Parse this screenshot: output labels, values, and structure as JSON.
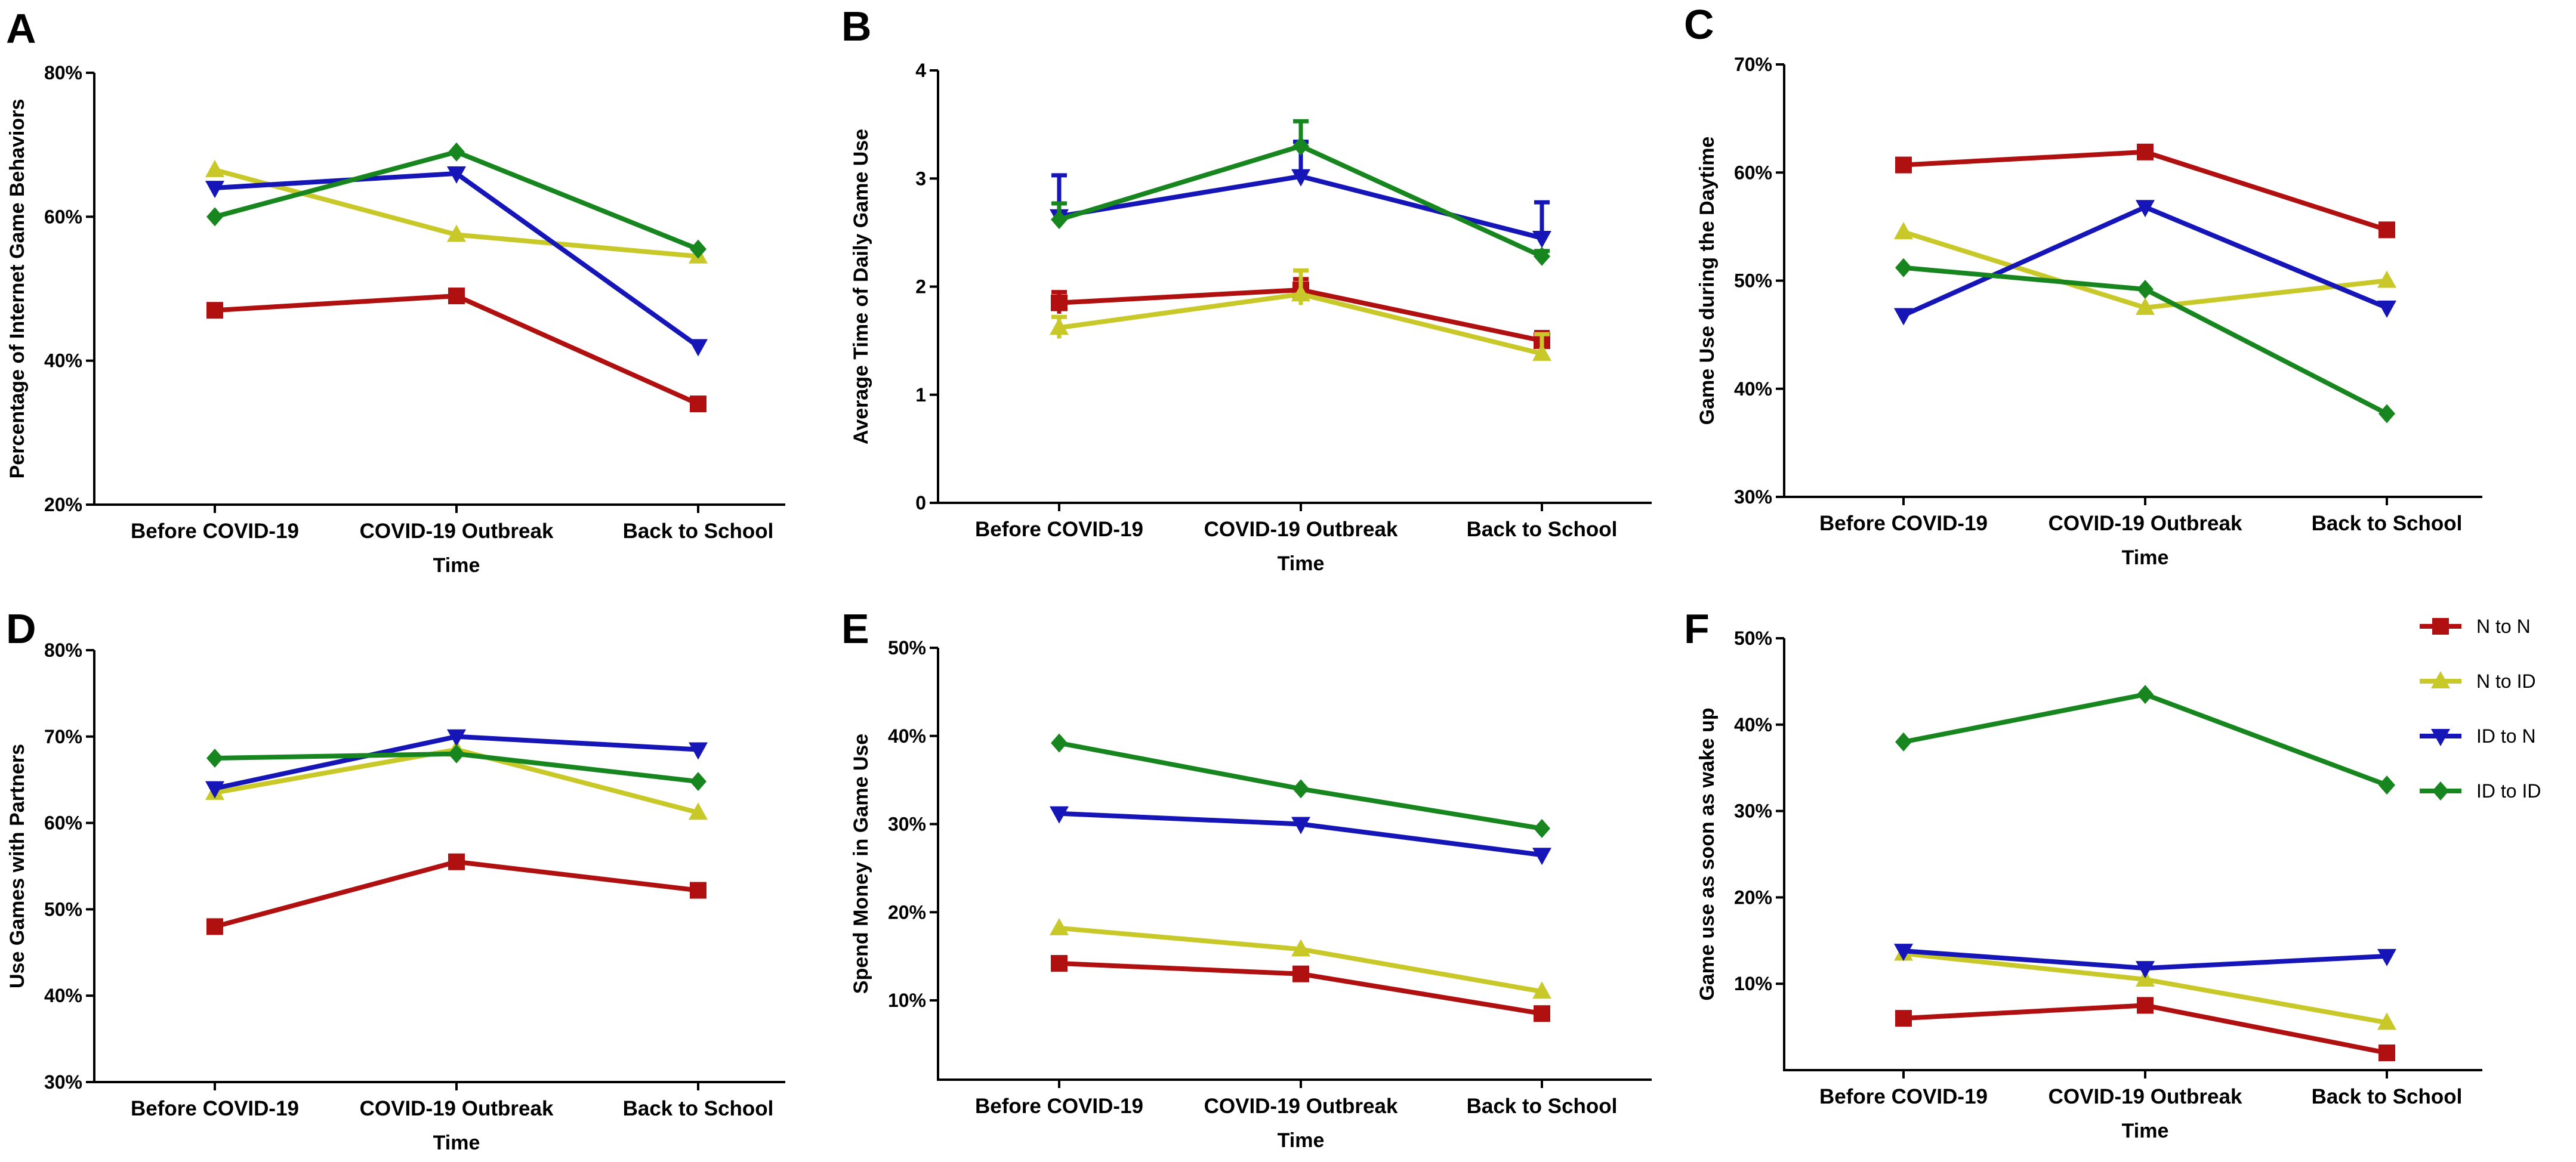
{
  "colors": {
    "N to N": "#b01010",
    "N to ID": "#c8c829",
    "ID to N": "#1515b8",
    "ID to ID": "#17861f"
  },
  "markers": {
    "N to N": "square",
    "N to ID": "triangle-up",
    "ID to N": "triangle-down",
    "ID to ID": "diamond"
  },
  "legend": {
    "items": [
      "N to N",
      "N to ID",
      "ID to N",
      "ID to ID"
    ]
  },
  "chart_data": [
    {
      "panel": "A",
      "type": "line",
      "categories": [
        "Before COVID-19",
        "COVID-19 Outbreak",
        "Back to School"
      ],
      "xlabel": "Time",
      "ylabel": "Percentage of Internet Game Behaviors",
      "ylim": [
        20,
        80
      ],
      "yticks": [
        20,
        40,
        60,
        80
      ],
      "ytick_labels": [
        "20%",
        "40%",
        "60%",
        "80%"
      ],
      "series": [
        {
          "name": "N to N",
          "values": [
            47,
            49,
            34
          ]
        },
        {
          "name": "N to ID",
          "values": [
            66.5,
            57.5,
            54.5
          ]
        },
        {
          "name": "ID to N",
          "values": [
            64,
            66,
            42
          ]
        },
        {
          "name": "ID to ID",
          "values": [
            60,
            69,
            55.5
          ]
        }
      ]
    },
    {
      "panel": "B",
      "type": "line",
      "categories": [
        "Before COVID-19",
        "COVID-19 Outbreak",
        "Back to School"
      ],
      "xlabel": "Time",
      "ylabel": "Average Time of Daily Game Use",
      "ylim": [
        0,
        4
      ],
      "yticks": [
        0,
        1,
        2,
        3,
        4
      ],
      "ytick_labels": [
        "0",
        "1",
        "2",
        "3",
        "4"
      ],
      "series": [
        {
          "name": "N to N",
          "values": [
            1.85,
            1.97,
            1.5
          ],
          "err_up": [
            0.1,
            0.1,
            0.08
          ],
          "err_down": [
            0.1,
            0.1,
            0.08
          ]
        },
        {
          "name": "N to ID",
          "values": [
            1.62,
            1.93,
            1.38
          ],
          "err_up": [
            0.1,
            0.22,
            0.18
          ],
          "err_down": [
            0.1,
            0.1,
            0.05
          ]
        },
        {
          "name": "ID to N",
          "values": [
            2.65,
            3.02,
            2.45
          ],
          "err_up": [
            0.38,
            0.32,
            0.33
          ],
          "err_down": [
            0.05,
            0.05,
            0.05
          ]
        },
        {
          "name": "ID to ID",
          "values": [
            2.62,
            3.3,
            2.28
          ],
          "err_up": [
            0.15,
            0.23,
            0.05
          ],
          "err_down": [
            0.05,
            0.05,
            0.05
          ]
        }
      ]
    },
    {
      "panel": "C",
      "type": "line",
      "categories": [
        "Before COVID-19",
        "COVID-19 Outbreak",
        "Back to School"
      ],
      "xlabel": "Time",
      "ylabel": "Game Use during the Daytime",
      "ylim": [
        30,
        70
      ],
      "yticks": [
        30,
        40,
        50,
        60,
        70
      ],
      "ytick_labels": [
        "30%",
        "40%",
        "50%",
        "60%",
        "70%"
      ],
      "series": [
        {
          "name": "N to N",
          "values": [
            60.7,
            61.9,
            54.7
          ]
        },
        {
          "name": "N to ID",
          "values": [
            54.5,
            47.5,
            50
          ]
        },
        {
          "name": "ID to N",
          "values": [
            46.8,
            56.8,
            47.5
          ]
        },
        {
          "name": "ID to ID",
          "values": [
            51.2,
            49.2,
            37.7
          ]
        }
      ]
    },
    {
      "panel": "D",
      "type": "line",
      "categories": [
        "Before COVID-19",
        "COVID-19 Outbreak",
        "Back to School"
      ],
      "xlabel": "Time",
      "ylabel": "Use Games with Partners",
      "ylim": [
        30,
        80
      ],
      "yticks": [
        30,
        40,
        50,
        60,
        70,
        80
      ],
      "ytick_labels": [
        "30%",
        "40%",
        "50%",
        "60%",
        "70%",
        "80%"
      ],
      "series": [
        {
          "name": "N to N",
          "values": [
            48,
            55.5,
            52.2
          ]
        },
        {
          "name": "N to ID",
          "values": [
            63.5,
            68.5,
            61.2
          ]
        },
        {
          "name": "ID to N",
          "values": [
            64,
            70,
            68.5
          ]
        },
        {
          "name": "ID to ID",
          "values": [
            67.5,
            68,
            64.8
          ]
        }
      ]
    },
    {
      "panel": "E",
      "type": "line",
      "categories": [
        "Before COVID-19",
        "COVID-19 Outbreak",
        "Back to School"
      ],
      "xlabel": "Time",
      "ylabel": "Spend Money in Game Use",
      "ylim": [
        1,
        50
      ],
      "yticks": [
        10,
        20,
        30,
        40,
        50
      ],
      "ytick_labels": [
        "10%",
        "20%",
        "30%",
        "40%",
        "50%"
      ],
      "series": [
        {
          "name": "N to N",
          "values": [
            14.2,
            13,
            8.5
          ]
        },
        {
          "name": "N to ID",
          "values": [
            18.2,
            15.8,
            11
          ]
        },
        {
          "name": "ID to N",
          "values": [
            31.2,
            30,
            26.5
          ]
        },
        {
          "name": "ID to ID",
          "values": [
            39.2,
            34,
            29.5
          ]
        }
      ]
    },
    {
      "panel": "F",
      "type": "line",
      "categories": [
        "Before COVID-19",
        "COVID-19 Outbreak",
        "Back to School"
      ],
      "xlabel": "Time",
      "ylabel": "Game use as soon as wake up",
      "ylim": [
        0,
        50
      ],
      "yticks": [
        10,
        20,
        30,
        40,
        50
      ],
      "ytick_labels": [
        "10%",
        "20%",
        "30%",
        "40%",
        "50%"
      ],
      "series": [
        {
          "name": "N to N",
          "values": [
            6,
            7.5,
            2
          ]
        },
        {
          "name": "N to ID",
          "values": [
            13.5,
            10.5,
            5.5
          ]
        },
        {
          "name": "ID to N",
          "values": [
            13.8,
            11.8,
            13.2
          ]
        },
        {
          "name": "ID to ID",
          "values": [
            38,
            43.5,
            33
          ]
        }
      ]
    }
  ]
}
